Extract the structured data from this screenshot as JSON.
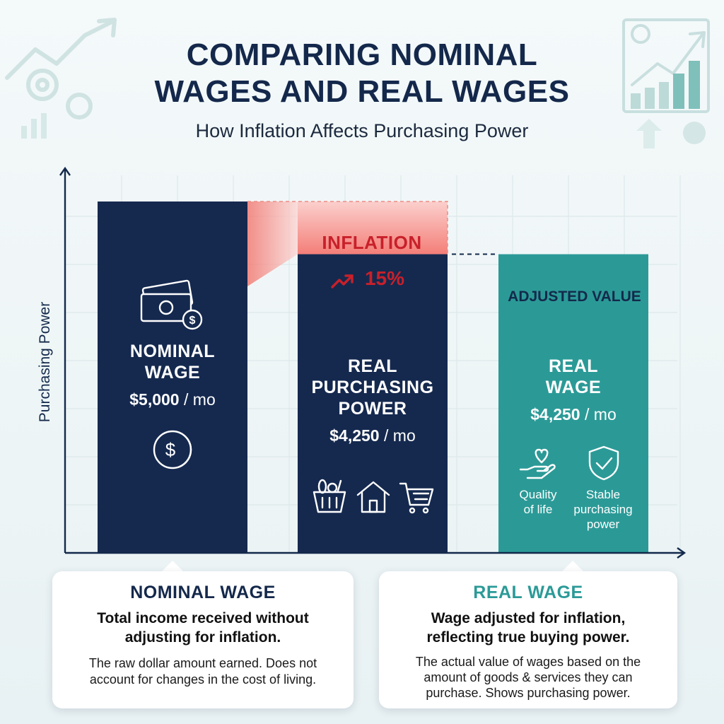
{
  "title_line1": "COMPARING NOMINAL",
  "title_line2": "WAGES AND REAL WAGES",
  "subtitle": "How Inflation Affects Purchasing Power",
  "colors": {
    "navy": "#15294f",
    "teal": "#2b9a97",
    "inflation_red": "#c8202a",
    "inflation_fill": "#f47e78"
  },
  "chart_data": {
    "type": "bar",
    "ylabel": "Purchasing Power",
    "xlabel": "",
    "categories": [
      "NOMINAL WAGE",
      "REAL PURCHASING POWER",
      "REAL WAGE"
    ],
    "values": [
      5000,
      4250,
      4250
    ],
    "unit": "/ mo",
    "value_labels": [
      "$5,000",
      "$4,250",
      "$4,250"
    ],
    "ylim": [
      0,
      5800
    ],
    "inflation": {
      "label": "INFLATION",
      "value": "15%",
      "amount": 750
    },
    "adjusted_label": "ADJUSTED VALUE",
    "grid": true
  },
  "bars": {
    "nominal": {
      "line1": "NOMINAL",
      "line2": "WAGE",
      "value": "$5,000",
      "unit": "/ mo"
    },
    "real_pp": {
      "line1": "REAL",
      "line2": "PURCHASING",
      "line3": "POWER",
      "value": "$4,250",
      "unit": "/ mo"
    },
    "real_wage": {
      "line1": "REAL",
      "line2": "WAGE",
      "value": "$4,250",
      "unit": "/ mo",
      "caption_left": [
        "Quality",
        "of life"
      ],
      "caption_right": [
        "Stable",
        "purchasing",
        "power"
      ]
    }
  },
  "icons": {
    "nominal_top": "money-bills-icon",
    "nominal_bottom": "dollar-coin-icon",
    "real_pp": [
      "grocery-basket-icon",
      "house-icon",
      "shopping-cart-icon"
    ],
    "real_wage": [
      "heart-hand-icon",
      "shield-check-icon"
    ],
    "inflation": "trend-up-arrow-icon"
  },
  "cards": {
    "nominal": {
      "heading": "NOMINAL WAGE",
      "strong": [
        "Total income received without",
        "adjusting for inflation."
      ],
      "body": [
        "The raw dollar amount earned. Does not",
        "account for changes in the cost of living."
      ]
    },
    "real": {
      "heading": "REAL WAGE",
      "strong": [
        "Wage adjusted for inflation,",
        "reflecting true buying power."
      ],
      "body": [
        "The actual value of wages based on the",
        "amount of goods & services they can",
        "purchase. Shows purchasing power."
      ]
    }
  }
}
